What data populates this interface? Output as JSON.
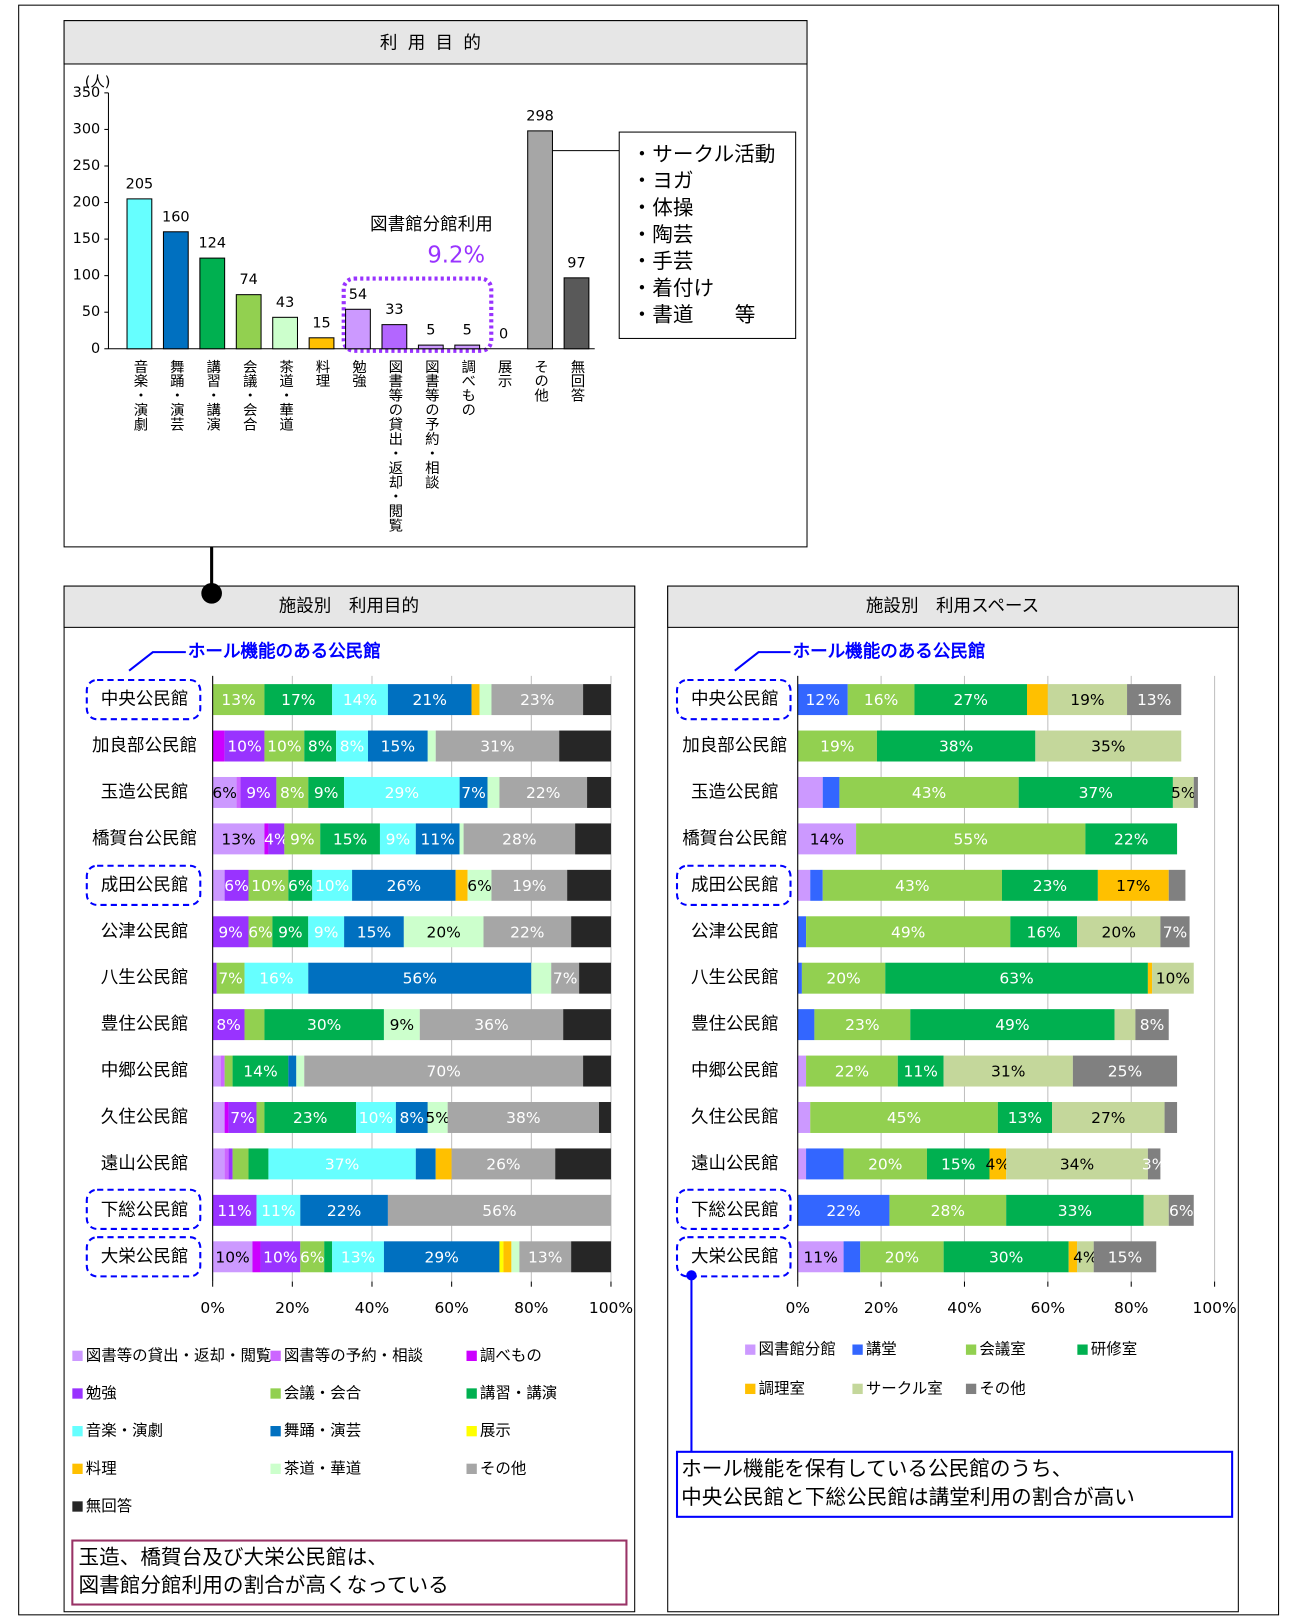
{
  "chart_data": [
    {
      "type": "bar",
      "title": "利用目的",
      "y_unit": "(人)",
      "categories": [
        "音楽・演劇",
        "舞踊・演芸",
        "講習・講演",
        "会議・会合",
        "茶道・華道",
        "料理",
        "勉強",
        "図書等の貸出・返却・閲覧",
        "図書等の予約・相談",
        "調べもの",
        "展示",
        "その他",
        "無回答"
      ],
      "values": [
        205,
        160,
        124,
        74,
        43,
        15,
        54,
        33,
        5,
        5,
        0,
        298,
        97
      ],
      "colors": [
        "#66ffff",
        "#0070c0",
        "#00b050",
        "#92d050",
        "#ccffcc",
        "#ffc000",
        "#cc99ff",
        "#b366ff",
        "#cc99ff",
        "#cc99ff",
        "#ffff00",
        "#a6a6a6",
        "#595959"
      ],
      "ylim": [
        0,
        350
      ],
      "yticks": [
        0,
        50,
        100,
        150,
        200,
        250,
        300,
        350
      ],
      "grid": false,
      "annotation": {
        "label": "図書館分館利用",
        "value": "9.2%"
      },
      "callout": [
        "・サークル活動",
        "・ヨガ",
        "・体操",
        "・陶芸",
        "・手芸",
        "・着付け",
        "・書道　　等"
      ]
    },
    {
      "type": "stacked_bar_horizontal",
      "title": "施設別　利用目的",
      "group_label": "ホール機能のある公民館",
      "categories": [
        "中央公民館",
        "加良部公民館",
        "玉造公民館",
        "橋賀台公民館",
        "成田公民館",
        "公津公民館",
        "八生公民館",
        "豊住公民館",
        "中郷公民館",
        "久住公民館",
        "遠山公民館",
        "下総公民館",
        "大栄公民館"
      ],
      "series": [
        {
          "name": "図書等の貸出・返却・閲覧",
          "color": "#cc99ff",
          "values": [
            0,
            0,
            6,
            13,
            3,
            0,
            0,
            0,
            2,
            3,
            3,
            0,
            10
          ],
          "value_labels": [
            null,
            null,
            "6%",
            "13%",
            null,
            null,
            null,
            null,
            null,
            null,
            null,
            null,
            "10%"
          ]
        },
        {
          "name": "図書等の予約・相談",
          "color": "#cc66ff",
          "values": [
            0,
            0,
            1,
            0,
            0,
            0,
            0,
            0,
            1,
            0,
            1,
            0,
            0
          ]
        },
        {
          "name": "調べもの",
          "color": "#cc00ff",
          "values": [
            0,
            3,
            0,
            1,
            0,
            0,
            0,
            0,
            0,
            1,
            0,
            0,
            2
          ]
        },
        {
          "name": "勉強",
          "color": "#9933ff",
          "values": [
            0,
            10,
            9,
            4,
            6,
            9,
            1,
            8,
            0,
            7,
            1,
            11,
            10
          ],
          "value_labels": [
            null,
            "10%",
            "9%",
            "4%",
            "6%",
            "9%",
            null,
            "8%",
            null,
            "7%",
            null,
            "11%",
            "10%"
          ]
        },
        {
          "name": "会議・会合",
          "color": "#92d050",
          "values": [
            13,
            10,
            8,
            9,
            10,
            6,
            7,
            5,
            2,
            2,
            4,
            0,
            6
          ],
          "value_labels": [
            "13%",
            "10%",
            "8%",
            "9%",
            "10%",
            "6%",
            "7%",
            null,
            null,
            null,
            null,
            null,
            "6%"
          ]
        },
        {
          "name": "講習・講演",
          "color": "#00b050",
          "values": [
            17,
            8,
            9,
            15,
            6,
            9,
            0,
            30,
            14,
            23,
            5,
            0,
            2
          ],
          "value_labels": [
            "17%",
            "8%",
            "9%",
            "15%",
            "6%",
            "9%",
            null,
            "30%",
            "14%",
            "23%",
            null,
            null,
            null
          ]
        },
        {
          "name": "音楽・演劇",
          "color": "#66ffff",
          "values": [
            14,
            8,
            29,
            9,
            10,
            9,
            16,
            0,
            0,
            10,
            37,
            11,
            13
          ],
          "value_labels": [
            "14%",
            "8%",
            "29%",
            "9%",
            "10%",
            "9%",
            "16%",
            null,
            null,
            "10%",
            "37%",
            "11%",
            "13%"
          ]
        },
        {
          "name": "舞踊・演芸",
          "color": "#0070c0",
          "values": [
            21,
            15,
            7,
            11,
            26,
            15,
            56,
            0,
            2,
            8,
            5,
            22,
            29
          ],
          "value_labels": [
            "21%",
            "15%",
            "7%",
            "11%",
            "26%",
            "15%",
            "56%",
            null,
            null,
            "8%",
            null,
            "22%",
            "29%"
          ]
        },
        {
          "name": "展示",
          "color": "#ffff00",
          "values": [
            0,
            0,
            0,
            0,
            0,
            0,
            0,
            0,
            0,
            0,
            0,
            0,
            1
          ]
        },
        {
          "name": "料理",
          "color": "#ffc000",
          "values": [
            2,
            0,
            0,
            0,
            3,
            0,
            0,
            0,
            0,
            0,
            4,
            0,
            2
          ]
        },
        {
          "name": "茶道・華道",
          "color": "#ccffcc",
          "values": [
            3,
            2,
            3,
            1,
            6,
            20,
            5,
            9,
            2,
            5,
            0,
            0,
            2
          ],
          "value_labels": [
            null,
            null,
            null,
            null,
            "6%",
            "20%",
            null,
            "9%",
            null,
            "5%",
            null,
            null,
            null
          ]
        },
        {
          "name": "その他",
          "color": "#a6a6a6",
          "values": [
            23,
            31,
            22,
            28,
            19,
            22,
            7,
            36,
            70,
            38,
            26,
            56,
            13
          ],
          "value_labels": [
            "23%",
            "31%",
            "22%",
            "28%",
            "19%",
            "22%",
            "7%",
            "36%",
            "70%",
            "38%",
            "26%",
            "56%",
            "13%"
          ]
        },
        {
          "name": "無回答",
          "color": "#262626",
          "values": [
            7,
            13,
            6,
            9,
            11,
            10,
            8,
            12,
            7,
            3,
            14,
            0,
            10
          ]
        }
      ],
      "xlim": [
        0,
        100
      ],
      "xticks": [
        {
          "value": 0,
          "label": "0%"
        },
        {
          "value": 20,
          "label": "20%"
        },
        {
          "value": 40,
          "label": "40%"
        },
        {
          "value": 60,
          "label": "60%"
        },
        {
          "value": 80,
          "label": "80%"
        },
        {
          "value": 100,
          "label": "100%"
        }
      ],
      "grid": true,
      "note": [
        "玉造、橋賀台及び大栄公民館は、",
        "図書館分館利用の割合が高くなっている"
      ]
    },
    {
      "type": "stacked_bar_horizontal",
      "title": "施設別　利用スペース",
      "group_label": "ホール機能のある公民館",
      "categories": [
        "中央公民館",
        "加良部公民館",
        "玉造公民館",
        "橋賀台公民館",
        "成田公民館",
        "公津公民館",
        "八生公民館",
        "豊住公民館",
        "中郷公民館",
        "久住公民館",
        "遠山公民館",
        "下総公民館",
        "大栄公民館"
      ],
      "series": [
        {
          "name": "図書館分館",
          "color": "#cc99ff",
          "values": [
            0,
            0,
            6,
            14,
            3,
            0,
            0,
            0,
            2,
            3,
            2,
            0,
            11
          ],
          "value_labels": [
            null,
            null,
            null,
            "14%",
            null,
            null,
            null,
            null,
            null,
            null,
            null,
            null,
            "11%"
          ]
        },
        {
          "name": "講堂",
          "color": "#3366ff",
          "values": [
            12,
            0,
            4,
            0,
            3,
            2,
            1,
            4,
            0,
            0,
            9,
            22,
            4
          ],
          "value_labels": [
            "12%",
            null,
            null,
            null,
            null,
            null,
            null,
            null,
            null,
            null,
            null,
            "22%",
            null
          ]
        },
        {
          "name": "会議室",
          "color": "#92d050",
          "values": [
            16,
            19,
            43,
            55,
            43,
            49,
            20,
            23,
            22,
            45,
            20,
            28,
            20
          ],
          "value_labels": [
            "16%",
            "19%",
            "43%",
            "55%",
            "43%",
            "49%",
            "20%",
            "23%",
            "22%",
            "45%",
            "20%",
            "28%",
            "20%"
          ]
        },
        {
          "name": "研修室",
          "color": "#00b050",
          "values": [
            27,
            38,
            37,
            22,
            23,
            16,
            63,
            49,
            11,
            13,
            15,
            33,
            30
          ],
          "value_labels": [
            "27%",
            "38%",
            "37%",
            "22%",
            "23%",
            "16%",
            "63%",
            "49%",
            "11%",
            "13%",
            "15%",
            "33%",
            "30%"
          ]
        },
        {
          "name": "調理室",
          "color": "#ffc000",
          "values": [
            5,
            0,
            0,
            0,
            17,
            0,
            1,
            0,
            0,
            0,
            4,
            0,
            2
          ],
          "value_labels": [
            null,
            null,
            null,
            null,
            "17%",
            null,
            null,
            null,
            null,
            null,
            "4%",
            null,
            null
          ]
        },
        {
          "name": "サークル室",
          "color": "#c4d79b",
          "values": [
            19,
            35,
            5,
            0,
            0,
            20,
            10,
            5,
            31,
            27,
            34,
            6,
            4
          ],
          "value_labels": [
            "19%",
            "35%",
            "5%",
            null,
            null,
            "20%",
            "10%",
            null,
            "31%",
            "27%",
            "34%",
            null,
            "4%"
          ]
        },
        {
          "name": "その他",
          "color": "#808080",
          "values": [
            13,
            0,
            1,
            0,
            4,
            7,
            0,
            8,
            25,
            3,
            3,
            6,
            15
          ],
          "value_labels": [
            "13%",
            null,
            null,
            null,
            null,
            "7%",
            null,
            "8%",
            "25%",
            null,
            "3%",
            "6%",
            "15%"
          ]
        }
      ],
      "xlim": [
        0,
        100
      ],
      "xticks": [
        {
          "value": 0,
          "label": "0%"
        },
        {
          "value": 20,
          "label": "20%"
        },
        {
          "value": 40,
          "label": "40%"
        },
        {
          "value": 60,
          "label": "60%"
        },
        {
          "value": 80,
          "label": "80%"
        },
        {
          "value": 100,
          "label": "100%"
        }
      ],
      "grid": true,
      "note": [
        "ホール機能を保有している公民館のうち、",
        "中央公民館と下総公民館は講堂利用の割合が高い"
      ]
    }
  ]
}
